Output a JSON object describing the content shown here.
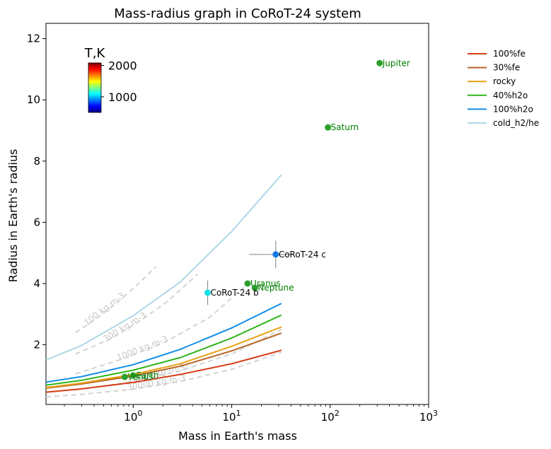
{
  "chart_data": {
    "type": "scatter",
    "title": "Mass-radius graph in CoRoT-24 system",
    "xlabel": "Mass in Earth's mass",
    "ylabel": "Radius in Earth's radius",
    "xscale": "log",
    "xlim": [
      0.13,
      1000
    ],
    "ylim": [
      0.05,
      12.5
    ],
    "x_tick_labels": [
      {
        "exp": "0",
        "value": 1
      },
      {
        "exp": "1",
        "value": 10
      },
      {
        "exp": "2",
        "value": 100
      },
      {
        "exp": "3",
        "value": 1000
      }
    ],
    "y_ticks": [
      2,
      4,
      6,
      8,
      10,
      12
    ],
    "legend_position": "outside-right",
    "series": [
      {
        "name": "100%fe",
        "color": "#d83b14",
        "x": [
          0.13,
          0.3,
          1,
          3,
          10,
          32
        ],
        "y": [
          0.45,
          0.56,
          0.77,
          1.03,
          1.38,
          1.82
        ]
      },
      {
        "name": "30%fe",
        "color": "#b8652a",
        "x": [
          0.13,
          0.3,
          1,
          3,
          10,
          32
        ],
        "y": [
          0.58,
          0.72,
          0.98,
          1.3,
          1.8,
          2.38
        ]
      },
      {
        "name": "rocky",
        "color": "#e8a014",
        "x": [
          0.13,
          0.3,
          1,
          3,
          10,
          32
        ],
        "y": [
          0.6,
          0.75,
          1.03,
          1.38,
          1.95,
          2.58
        ]
      },
      {
        "name": "40%h2o",
        "color": "#2db518",
        "x": [
          0.13,
          0.3,
          1,
          3,
          10,
          32
        ],
        "y": [
          0.68,
          0.84,
          1.17,
          1.58,
          2.22,
          2.97
        ]
      },
      {
        "name": "100%h2o",
        "color": "#148ee8",
        "x": [
          0.13,
          0.3,
          1,
          3,
          10,
          32
        ],
        "y": [
          0.78,
          0.96,
          1.35,
          1.85,
          2.55,
          3.35
        ]
      },
      {
        "name": "cold_h2/he",
        "color": "#add8e6",
        "x": [
          0.13,
          0.3,
          1,
          3,
          10,
          32
        ],
        "y": [
          1.5,
          1.98,
          2.95,
          4.05,
          5.7,
          7.55
        ]
      }
    ],
    "density_contours": [
      {
        "label": "100 kg m-3",
        "x": [
          0.26,
          0.4,
          0.7,
          1.05,
          1.7
        ],
        "y": [
          2.4,
          2.8,
          3.4,
          3.9,
          4.55
        ]
      },
      {
        "label": "300 kg m-3",
        "x": [
          0.26,
          0.6,
          1.2,
          2.2,
          4.5
        ],
        "y": [
          1.7,
          2.2,
          2.8,
          3.4,
          4.3
        ]
      },
      {
        "label": "1000 kg m-3",
        "x": [
          0.26,
          0.8,
          2,
          6,
          16
        ],
        "y": [
          1.05,
          1.55,
          2.05,
          2.9,
          4.1
        ]
      },
      {
        "label": "10000 kg m-3",
        "x": [
          0.26,
          1,
          3,
          10,
          32
        ],
        "y": [
          0.52,
          0.8,
          1.15,
          1.7,
          2.5
        ]
      },
      {
        "label": "30000 kg m-3",
        "x": [
          0.13,
          0.3,
          1,
          3,
          10,
          32
        ],
        "y": [
          0.3,
          0.38,
          0.55,
          0.8,
          1.2,
          1.75
        ]
      }
    ],
    "planets": [
      {
        "name": "Jupiter",
        "x": 318,
        "y": 11.2,
        "color": "#2ca02c",
        "label_color": "#008000"
      },
      {
        "name": "Saturn",
        "x": 95,
        "y": 9.1,
        "color": "#2ca02c",
        "label_color": "#008000"
      },
      {
        "name": "Uranus",
        "x": 14.5,
        "y": 4.0,
        "color": "#2ca02c",
        "label_color": "#008000"
      },
      {
        "name": "Neptune",
        "x": 17.2,
        "y": 3.86,
        "color": "#2ca02c",
        "label_color": "#008000"
      },
      {
        "name": "Earth",
        "x": 1.0,
        "y": 1.0,
        "color": "#2ca02c",
        "label_color": "#008000"
      },
      {
        "name": "Venus",
        "x": 0.82,
        "y": 0.95,
        "color": "#2ca02c",
        "label_color": "#008000"
      },
      {
        "name": "CoRoT-24 b",
        "x": 5.7,
        "y": 3.7,
        "color": "#14e0e8",
        "label_color": "#000000",
        "xerr": [
          0,
          0
        ],
        "yerr": [
          0.4,
          0.4
        ]
      },
      {
        "name": "CoRoT-24 c",
        "x": 28,
        "y": 4.95,
        "color": "#1478e6",
        "label_color": "#000000",
        "xerr": [
          13,
          14
        ],
        "yerr": [
          0.45,
          0.45
        ]
      }
    ],
    "colorbar": {
      "title": "T,K",
      "ticks": [
        1000,
        2000
      ],
      "range": [
        500,
        2080
      ]
    }
  }
}
